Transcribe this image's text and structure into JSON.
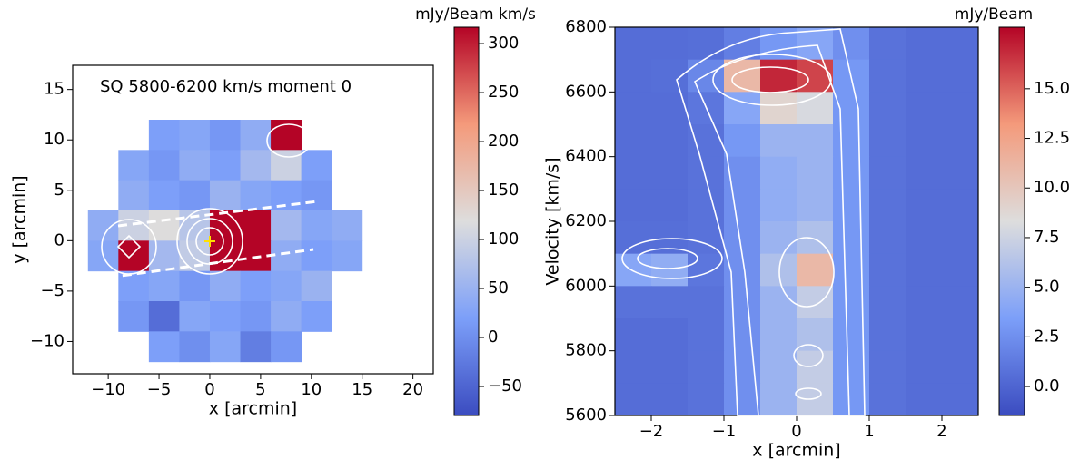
{
  "chart_data": [
    {
      "type": "heatmap",
      "title": "SQ 5800-6200 km/s moment 0",
      "xlabel": "x [arcmin]",
      "ylabel": "y [arcmin]",
      "colormap": "coolwarm",
      "x": [
        -10.5,
        -7.5,
        -4.5,
        -1.5,
        1.5,
        4.5,
        7.5,
        10.5,
        13.5
      ],
      "y": [
        10.5,
        7.5,
        4.5,
        1.5,
        -1.5,
        -4.5,
        -7.5,
        -10.5
      ],
      "z": [
        [
          null,
          null,
          20,
          30,
          10,
          40,
          320,
          null,
          null
        ],
        [
          null,
          30,
          10,
          40,
          20,
          60,
          100,
          20,
          null
        ],
        [
          null,
          40,
          20,
          10,
          50,
          30,
          20,
          10,
          null
        ],
        [
          40,
          100,
          120,
          80,
          330,
          330,
          60,
          30,
          40
        ],
        [
          30,
          320,
          60,
          90,
          320,
          330,
          40,
          20,
          30
        ],
        [
          null,
          20,
          30,
          10,
          40,
          20,
          30,
          50,
          null
        ],
        [
          null,
          10,
          -40,
          30,
          20,
          10,
          40,
          20,
          null
        ],
        [
          null,
          null,
          20,
          0,
          30,
          -20,
          10,
          null,
          null
        ]
      ],
      "xlim": [
        -13.5,
        22
      ],
      "ylim": [
        -13.2,
        17.4
      ],
      "xticks": [
        {
          "value": -10,
          "label": "−10"
        },
        {
          "value": -5,
          "label": "−5"
        },
        0,
        5,
        10,
        15,
        20
      ],
      "yticks": [
        {
          "value": -10,
          "label": "−10"
        },
        {
          "value": -5,
          "label": "−5"
        },
        0,
        5,
        10,
        15
      ],
      "colorbar": {
        "label": "mJy/Beam km/s",
        "lim": [
          -79.6,
          316.7
        ],
        "ticks": [
          {
            "value": -50,
            "label": "−50"
          },
          0,
          50,
          100,
          150,
          200,
          250,
          300
        ]
      }
    },
    {
      "type": "heatmap",
      "xlabel": "x [arcmin]",
      "ylabel": "Velocity [km/s]",
      "colormap": "coolwarm",
      "x": [
        -2.25,
        -1.75,
        -1.25,
        -0.75,
        -0.25,
        0.25,
        0.75,
        1.25,
        1.75,
        2.25
      ],
      "y": [
        6750,
        6650,
        6550,
        6450,
        6350,
        6250,
        6150,
        6050,
        5950,
        5850,
        5750,
        5650
      ],
      "z": [
        [
          0.5,
          0.5,
          0.6,
          1.5,
          3,
          4,
          2.5,
          0.8,
          0.5,
          0.5
        ],
        [
          0.5,
          0.6,
          2,
          11,
          17,
          16,
          3,
          0.8,
          0.5,
          0.5
        ],
        [
          0.5,
          0.5,
          1,
          4,
          9,
          8,
          3,
          0.8,
          0.5,
          0.5
        ],
        [
          0.5,
          0.5,
          0.8,
          3,
          5,
          5,
          3,
          0.8,
          0.5,
          0.5
        ],
        [
          0.5,
          0.5,
          0.8,
          2.5,
          4.5,
          5,
          3,
          0.8,
          0.5,
          0.5
        ],
        [
          0.5,
          0.5,
          0.8,
          2.5,
          4.5,
          5,
          3,
          0.8,
          0.5,
          0.5
        ],
        [
          0.6,
          0.6,
          0.8,
          2.5,
          5,
          6,
          3,
          0.8,
          0.5,
          0.5
        ],
        [
          4,
          4.5,
          1,
          2.5,
          6,
          11,
          3,
          0.8,
          0.5,
          0.5
        ],
        [
          0.8,
          0.8,
          0.8,
          2.5,
          5,
          7,
          3,
          0.8,
          0.5,
          0.5
        ],
        [
          0.5,
          0.5,
          0.8,
          2.5,
          5,
          6,
          3,
          0.8,
          0.5,
          0.5
        ],
        [
          0.5,
          0.5,
          0.8,
          2.5,
          5,
          7,
          3,
          0.8,
          0.5,
          0.5
        ],
        [
          0.5,
          0.5,
          0.8,
          2.5,
          5,
          7,
          3,
          0.8,
          0.5,
          0.5
        ]
      ],
      "xlim": [
        -2.5,
        2.5
      ],
      "ylim": [
        5600,
        6800
      ],
      "xticks": [
        {
          "value": -2,
          "label": "−2"
        },
        {
          "value": -1,
          "label": "−1"
        },
        0,
        1,
        2
      ],
      "yticks": [
        5600,
        5800,
        6000,
        6200,
        6400,
        6600,
        6800
      ],
      "colorbar": {
        "label": "mJy/Beam",
        "lim": [
          -1.46,
          18.1
        ],
        "ticks": [
          {
            "value": 0,
            "label": "0.0"
          },
          2.5,
          {
            "value": 5,
            "label": "5.0"
          },
          7.5,
          {
            "value": 10,
            "label": "10.0"
          },
          12.5,
          {
            "value": 15,
            "label": "15.0"
          }
        ]
      }
    }
  ]
}
